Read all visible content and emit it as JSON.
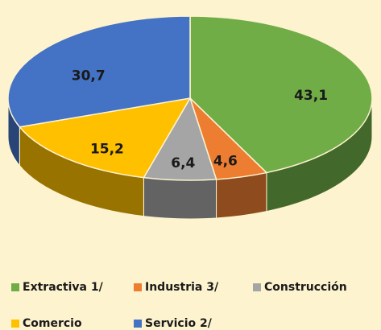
{
  "chart_data": {
    "type": "pie",
    "categories": [
      "Extractiva 1/",
      "Industria 3/",
      "Construcción",
      "Comercio",
      "Servicio 2/"
    ],
    "values": [
      43.1,
      4.6,
      6.4,
      15.2,
      30.7
    ],
    "value_labels": [
      "43,1",
      "4,6",
      "6,4",
      "15,2",
      "30,7"
    ],
    "colors": [
      "#70ad47",
      "#ed7d31",
      "#a5a5a5",
      "#ffc000",
      "#4472c4"
    ],
    "legend": "bottom"
  }
}
